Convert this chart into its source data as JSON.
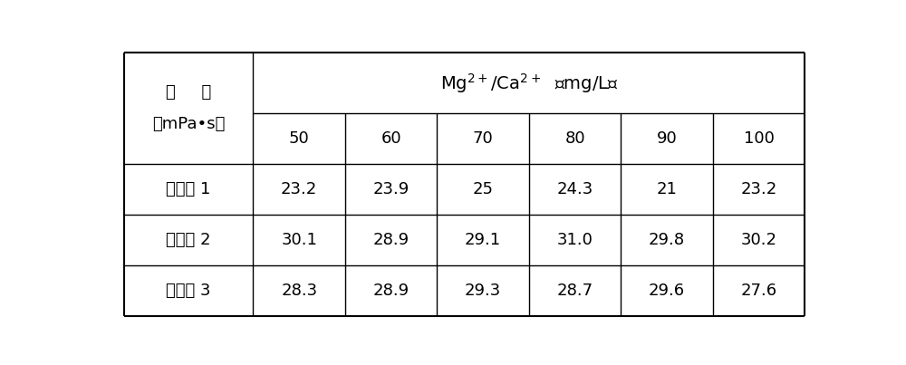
{
  "col_header_mg": "Mg",
  "col_header_ca": "Ca",
  "col_header_unit": "（mg/L）",
  "col_header_line2": [
    "50",
    "60",
    "70",
    "80",
    "90",
    "100"
  ],
  "row_header_line1": "粘     度",
  "row_header_line2": "（mPa•s）",
  "rows": [
    {
      "label": "实施例 1",
      "values": [
        "23.2",
        "23.9",
        "25",
        "24.3",
        "21",
        "23.2"
      ]
    },
    {
      "label": "实施例 2",
      "values": [
        "30.1",
        "28.9",
        "29.1",
        "31.0",
        "29.8",
        "30.2"
      ]
    },
    {
      "label": "实施例 3",
      "values": [
        "28.3",
        "28.9",
        "29.3",
        "28.7",
        "29.6",
        "27.6"
      ]
    }
  ],
  "background_color": "#ffffff",
  "line_color": "#000000",
  "text_color": "#000000",
  "fontsize": 13,
  "header_fontsize": 14,
  "small_fontsize": 9
}
